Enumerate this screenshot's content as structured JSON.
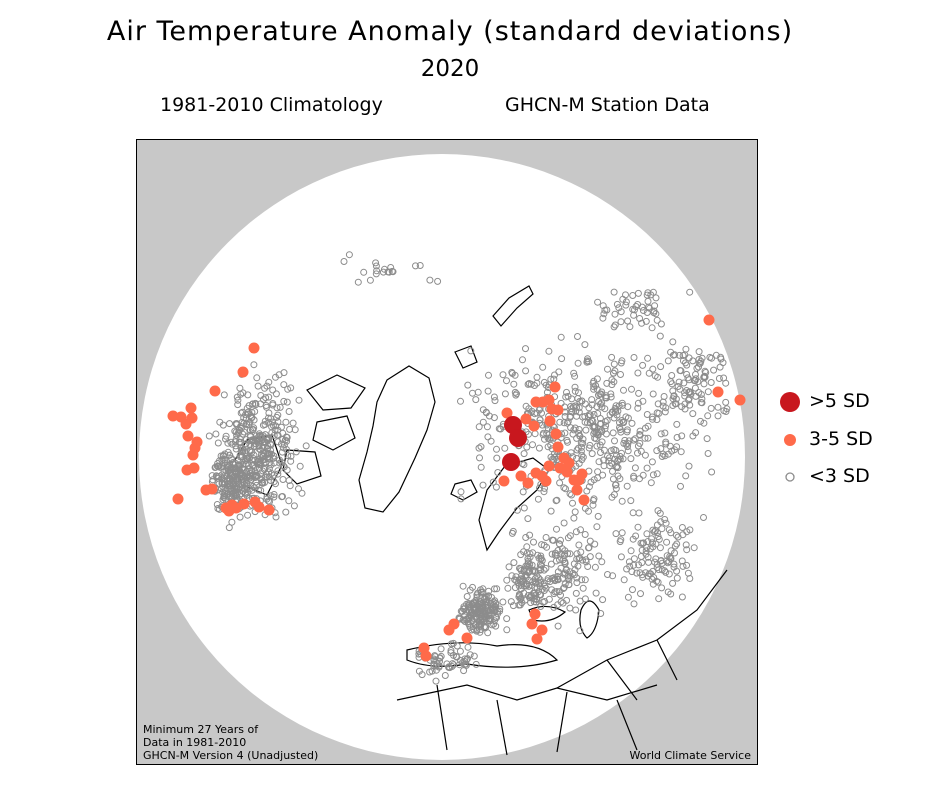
{
  "header": {
    "title": "Air Temperature Anomaly (standard deviations)",
    "year": "2020",
    "climatology": "1981-2010 Climatology",
    "source": "GHCN-M Station Data"
  },
  "map": {
    "projection": "north polar stereographic",
    "land_color": "#ffffff",
    "outside_color": "#c8c8c8",
    "footnote_lines": [
      "Minimum 27 Years of",
      "Data in 1981-2010",
      "GHCN-M Version 4 (Unadjusted)"
    ],
    "credit": "World Climate Service"
  },
  "legend": {
    "items": [
      {
        "label": ">5 SD",
        "color": "#c8171e",
        "marker": "large-dot"
      },
      {
        "label": "3-5 SD",
        "color": "#ff6a4a",
        "marker": "dot"
      },
      {
        "label": "<3 SD",
        "color": "#8c8c8c",
        "marker": "ring"
      }
    ]
  }
}
